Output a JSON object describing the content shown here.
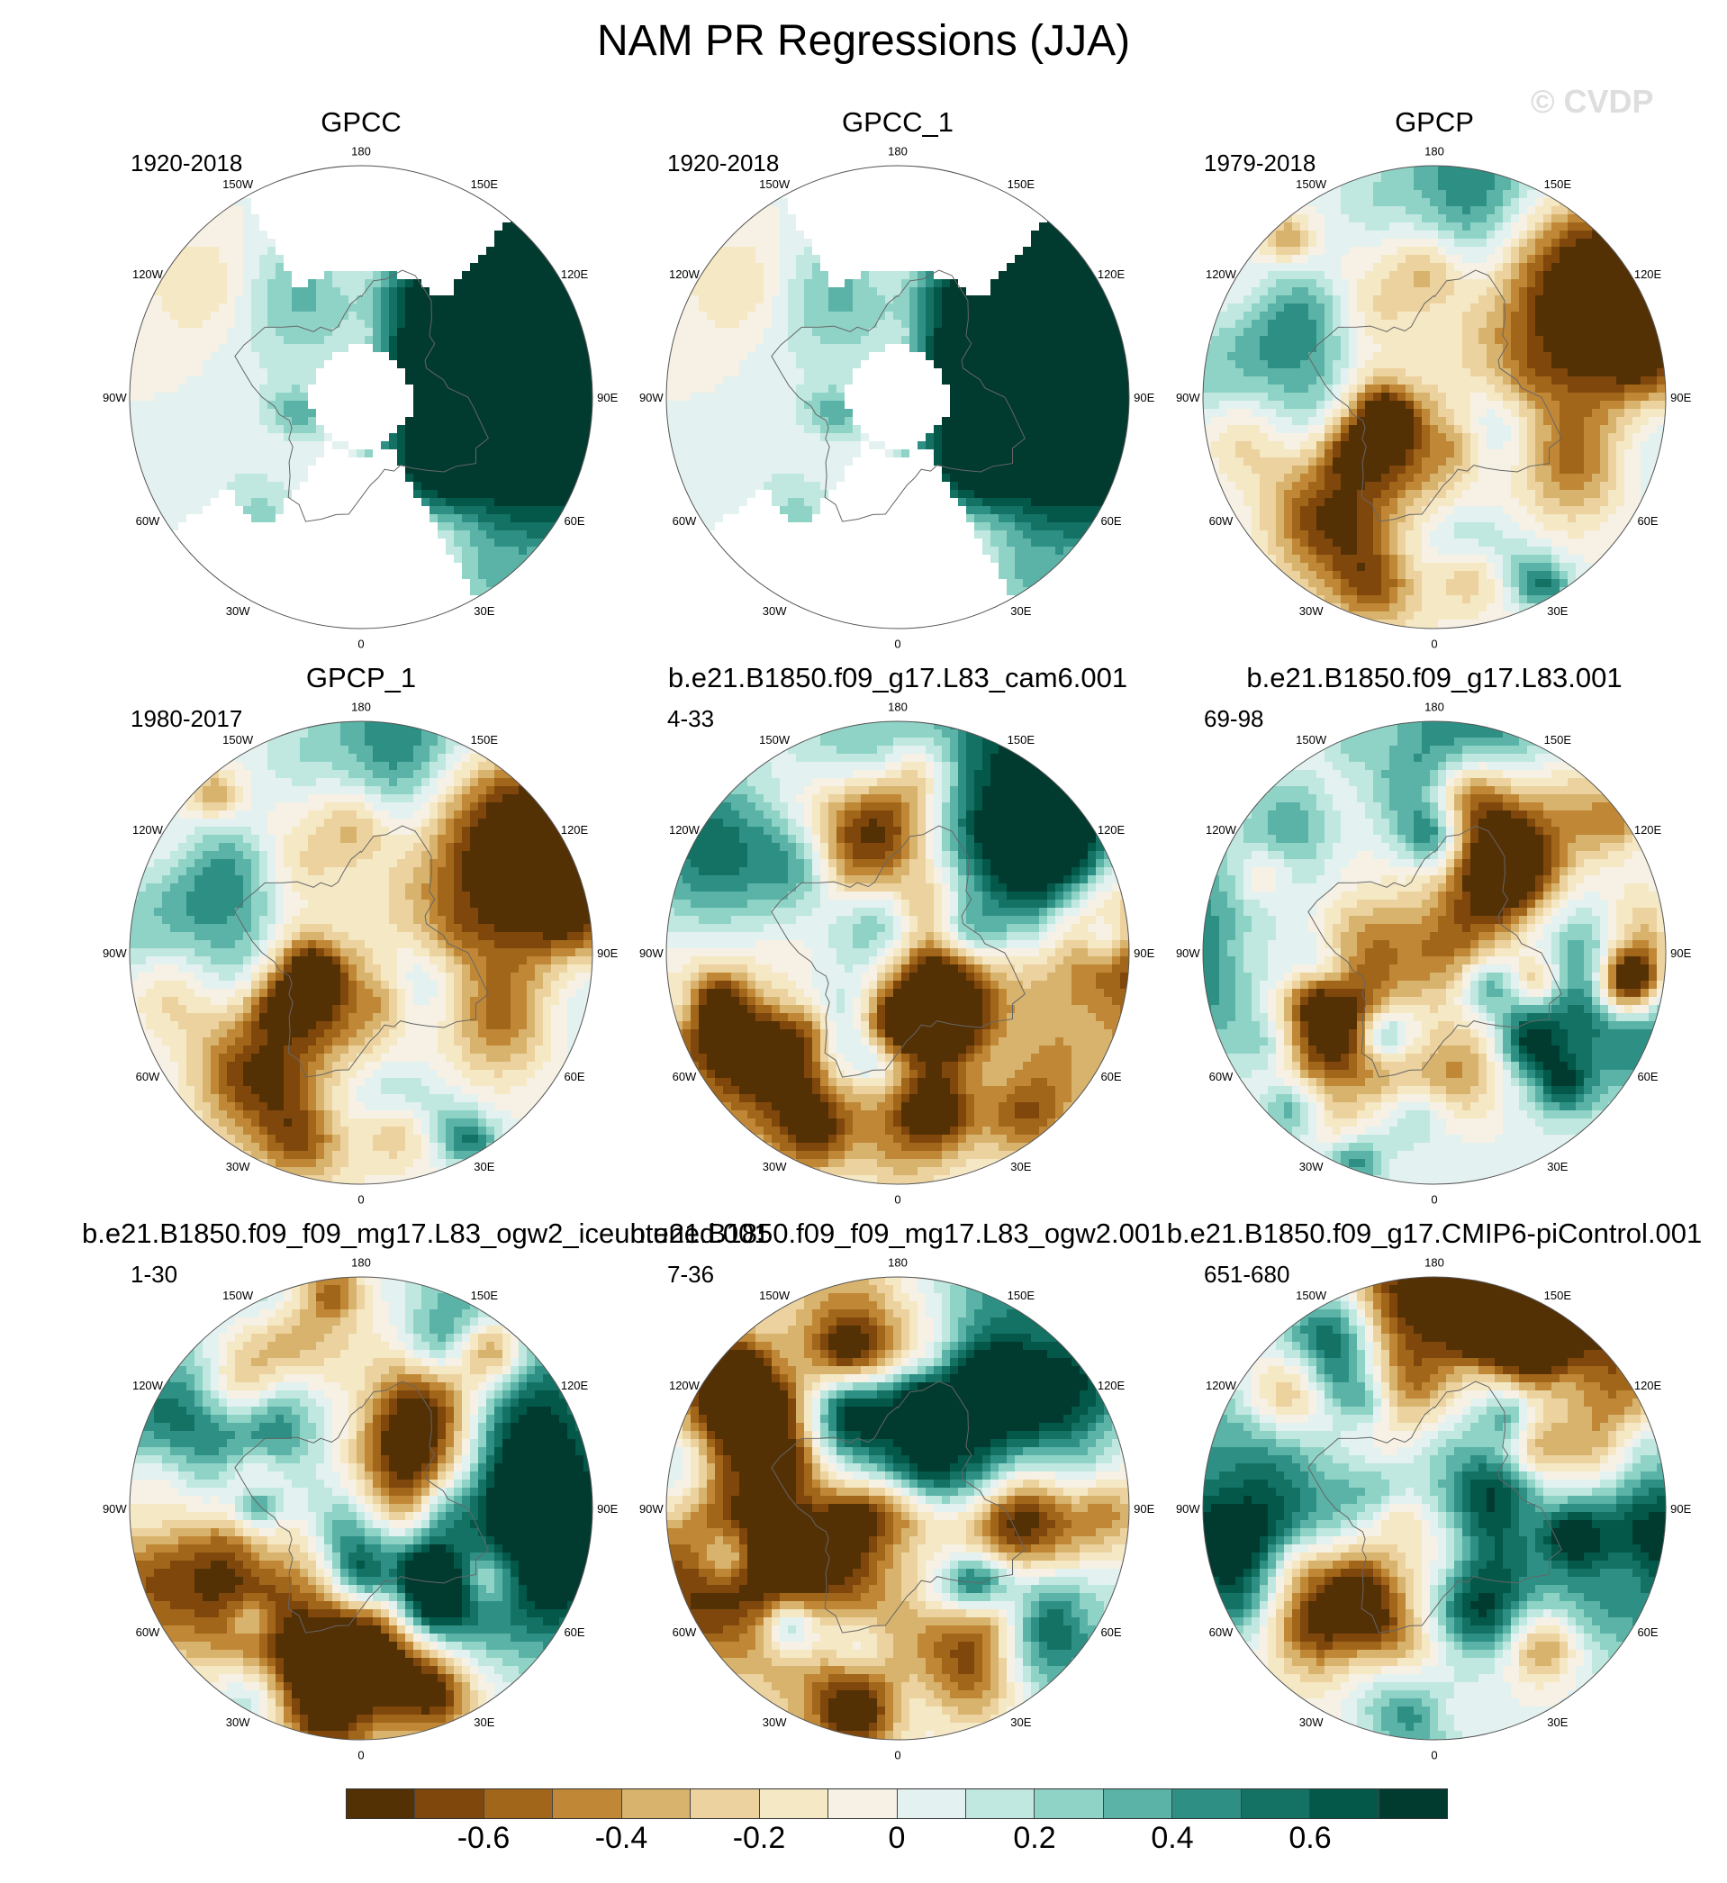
{
  "title": "NAM PR Regressions (JJA)",
  "watermark": "© CVDP",
  "longitude_labels": [
    "180",
    "150E",
    "120E",
    "90E",
    "60E",
    "30E",
    "0",
    "30W",
    "60W",
    "90W",
    "120W",
    "150W"
  ],
  "panels": [
    {
      "title": "GPCC",
      "years": "1920-2018",
      "coverage": "land",
      "pattern": "gpcc"
    },
    {
      "title": "GPCC_1",
      "years": "1920-2018",
      "coverage": "land",
      "pattern": "gpcc"
    },
    {
      "title": "GPCP",
      "years": "1979-2018",
      "coverage": "full",
      "pattern": "gpcp"
    },
    {
      "title": "GPCP_1",
      "years": "1980-2017",
      "coverage": "full",
      "pattern": "gpcp"
    },
    {
      "title": "b.e21.B1850.f09_g17.L83_cam6.001",
      "years": "4-33",
      "coverage": "full",
      "pattern": "model_a"
    },
    {
      "title": "b.e21.B1850.f09_g17.L83.001",
      "years": "69-98",
      "coverage": "full",
      "pattern": "model_b"
    },
    {
      "title": "b.e21.B1850.f09_f09_mg17.L83_ogw2_iceuntuned.001",
      "years": "1-30",
      "coverage": "full",
      "pattern": "model_c"
    },
    {
      "title": "b.e21.B1850.f09_f09_mg17.L83_ogw2.001",
      "years": "7-36",
      "coverage": "full",
      "pattern": "model_d"
    },
    {
      "title": "b.e21.B1850.f09_g17.CMIP6-piControl.001",
      "years": "651-680",
      "coverage": "full",
      "pattern": "model_e"
    }
  ],
  "colorbar": {
    "colors": [
      "#543005",
      "#7f470c",
      "#a2661a",
      "#c08836",
      "#d8b36d",
      "#ecd29e",
      "#f5e8c5",
      "#f6f1e4",
      "#e3f2f0",
      "#c0e8e1",
      "#8fd3c7",
      "#5ab3a6",
      "#2e9085",
      "#137264",
      "#03584a",
      "#013a2f"
    ],
    "tick_labels": [
      "-0.6",
      "-0.4",
      "-0.2",
      "0",
      "0.2",
      "0.4",
      "0.6"
    ],
    "tick_values": [
      -0.6,
      -0.4,
      -0.2,
      0,
      0.2,
      0.4,
      0.6
    ],
    "min": -0.8,
    "max": 0.8
  }
}
